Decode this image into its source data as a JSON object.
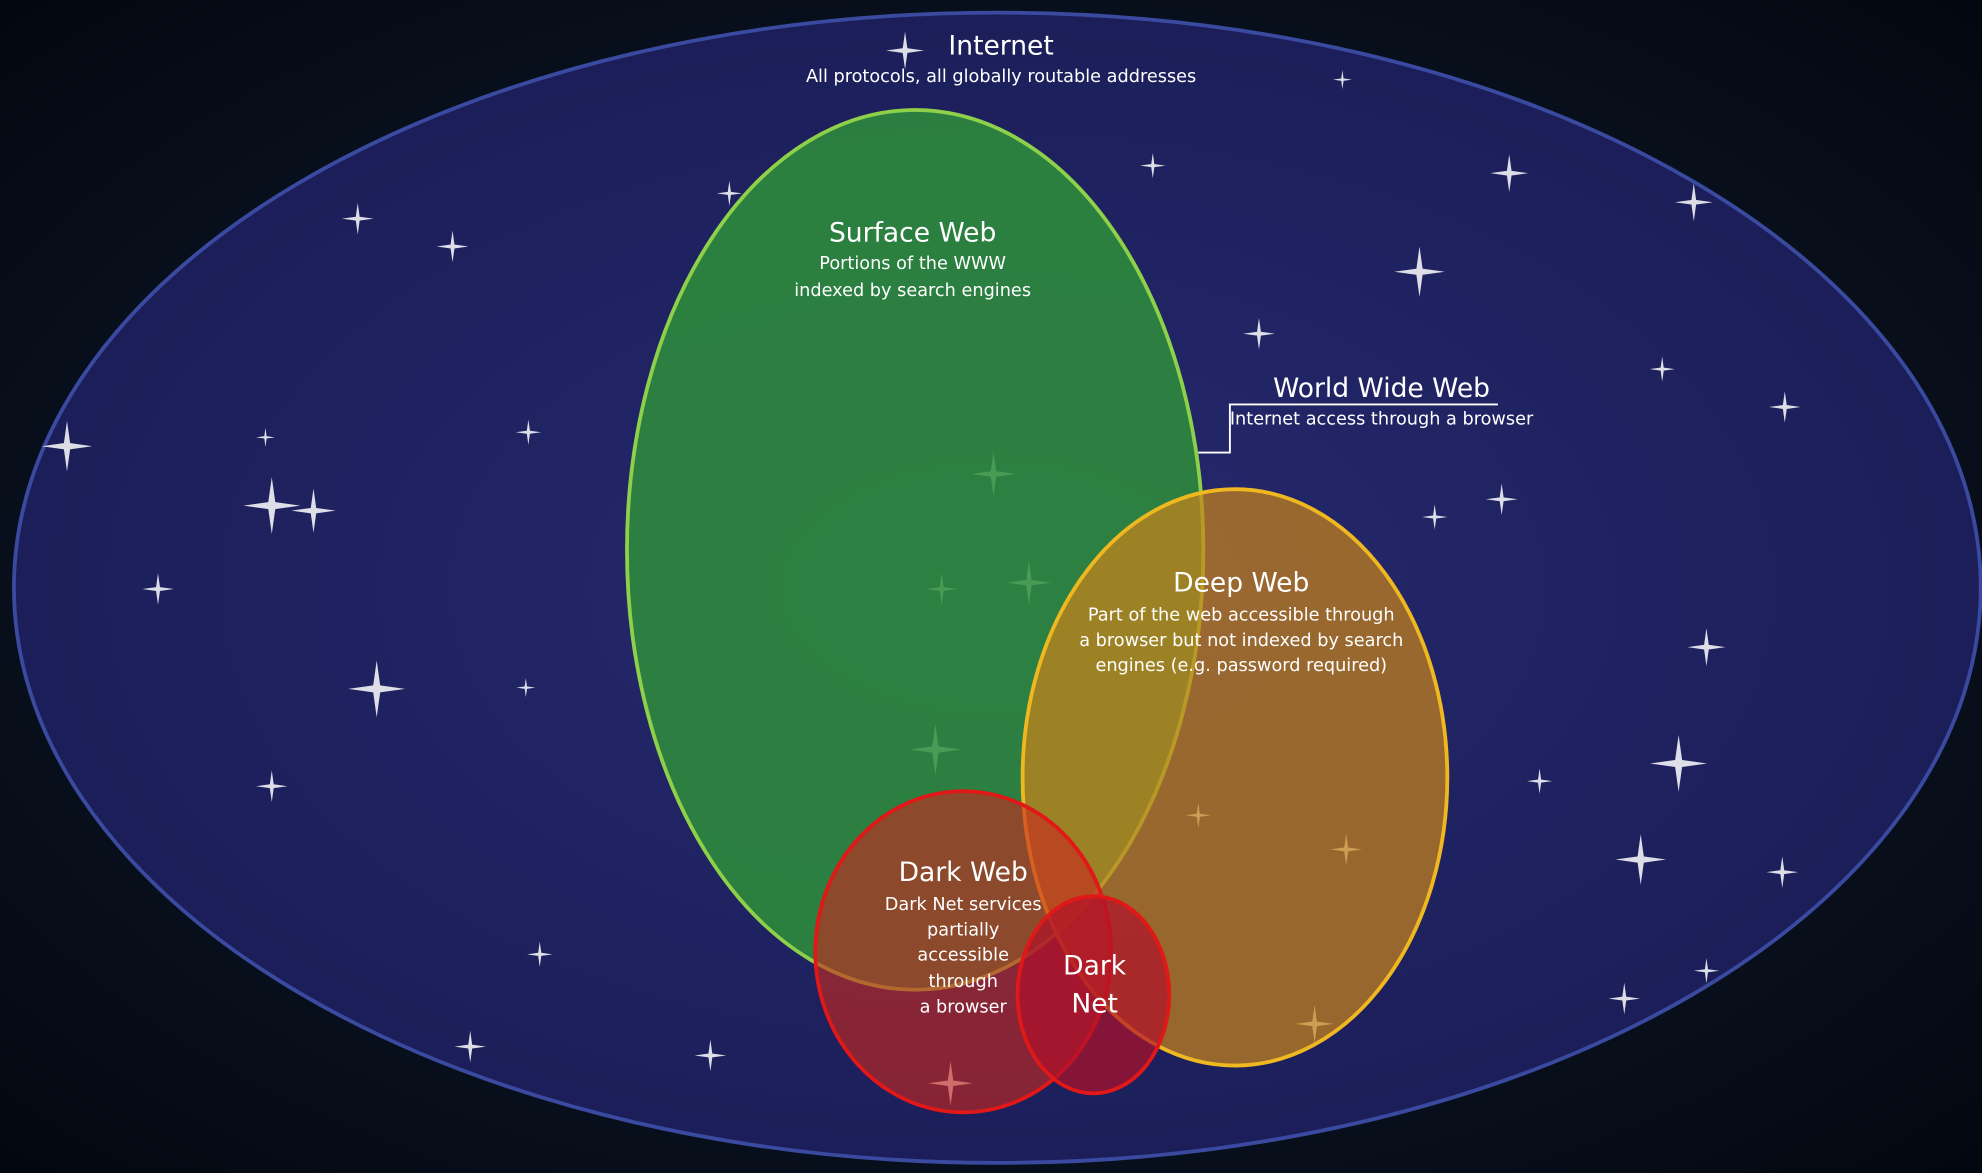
{
  "internet": {
    "title": "Internet",
    "description": "All protocols, all globally routable addresses"
  },
  "world_wide_web": {
    "title": "World Wide Web",
    "description": "Internet access through a browser"
  },
  "surface_web": {
    "title": "Surface Web",
    "description": [
      "Portions of the WWW",
      "indexed by search engines"
    ]
  },
  "deep_web": {
    "title": "Deep Web",
    "description": [
      "Part of the web accessible through",
      "a browser but not indexed by search",
      "engines (e.g. password required)"
    ]
  },
  "dark_web": {
    "title": "Dark Web",
    "description": [
      "Dark Net services",
      "partially",
      "accessible",
      "through",
      "a browser"
    ]
  },
  "dark_net": {
    "title": [
      "Dark",
      "Net"
    ]
  }
}
